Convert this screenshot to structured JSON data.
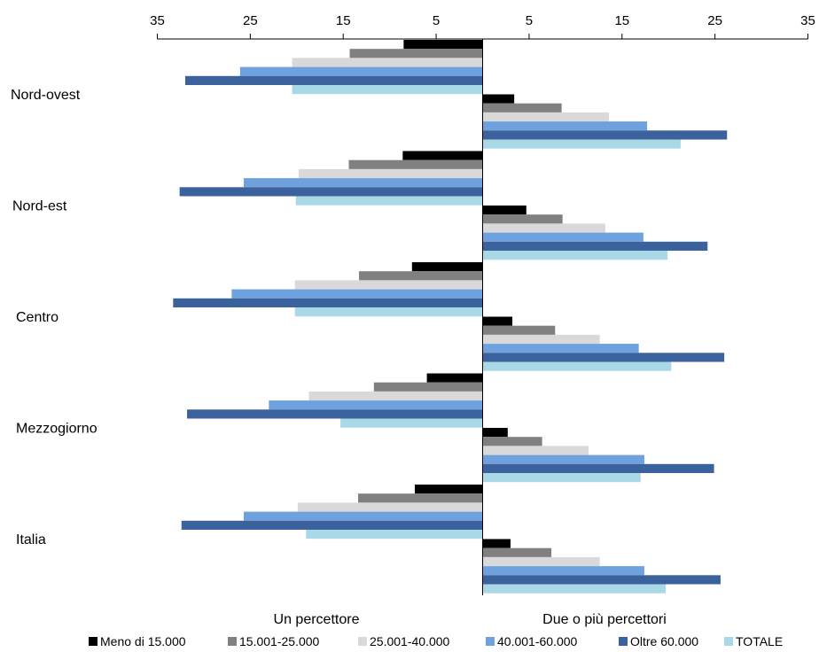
{
  "chart_data": {
    "type": "bar",
    "orientation": "horizontal-diverging",
    "title": "",
    "xlim": [
      -35,
      35
    ],
    "x_ticks": [
      "35",
      "25",
      "15",
      "5",
      "5",
      "15",
      "25",
      "35"
    ],
    "x_tick_values": [
      -35,
      -25,
      -15,
      -5,
      5,
      15,
      25,
      35
    ],
    "categories": [
      "Nord-ovest",
      "Nord-est",
      "Centro",
      "Mezzogiorno",
      "Italia"
    ],
    "groups": [
      "Un percettore",
      "Due o più percettori"
    ],
    "series": [
      {
        "name": "Meno di 15.000",
        "color": "#000000",
        "un_percettore": [
          8.5,
          8.6,
          7.6,
          6.0,
          7.3
        ],
        "due_o_piu": [
          3.4,
          4.7,
          3.2,
          2.7,
          3.0
        ]
      },
      {
        "name": "15.001-25.000",
        "color": "#808080",
        "un_percettore": [
          14.3,
          14.4,
          13.3,
          11.7,
          13.4
        ],
        "due_o_piu": [
          8.5,
          8.6,
          7.8,
          6.4,
          7.4
        ]
      },
      {
        "name": "25.001-40.000",
        "color": "#d9d9d9",
        "un_percettore": [
          20.5,
          19.8,
          20.2,
          18.7,
          19.9
        ],
        "due_o_piu": [
          13.6,
          13.2,
          12.6,
          11.4,
          12.6
        ]
      },
      {
        "name": "40.001-60.000",
        "color": "#6fa1df",
        "un_percettore": [
          26.1,
          25.7,
          27.0,
          23.0,
          25.7
        ],
        "due_o_piu": [
          17.7,
          17.3,
          16.8,
          17.4,
          17.4
        ]
      },
      {
        "name": "Oltre 60.000",
        "color": "#3b629c",
        "un_percettore": [
          32.0,
          32.6,
          33.3,
          31.8,
          32.4
        ],
        "due_o_piu": [
          26.3,
          24.2,
          26.0,
          24.9,
          25.6
        ]
      },
      {
        "name": "TOTALE",
        "color": "#a9d9e6",
        "un_percettore": [
          20.5,
          20.1,
          20.2,
          15.3,
          19.0
        ],
        "due_o_piu": [
          21.3,
          19.9,
          20.3,
          17.0,
          19.7
        ]
      }
    ],
    "legend_position": "bottom"
  }
}
